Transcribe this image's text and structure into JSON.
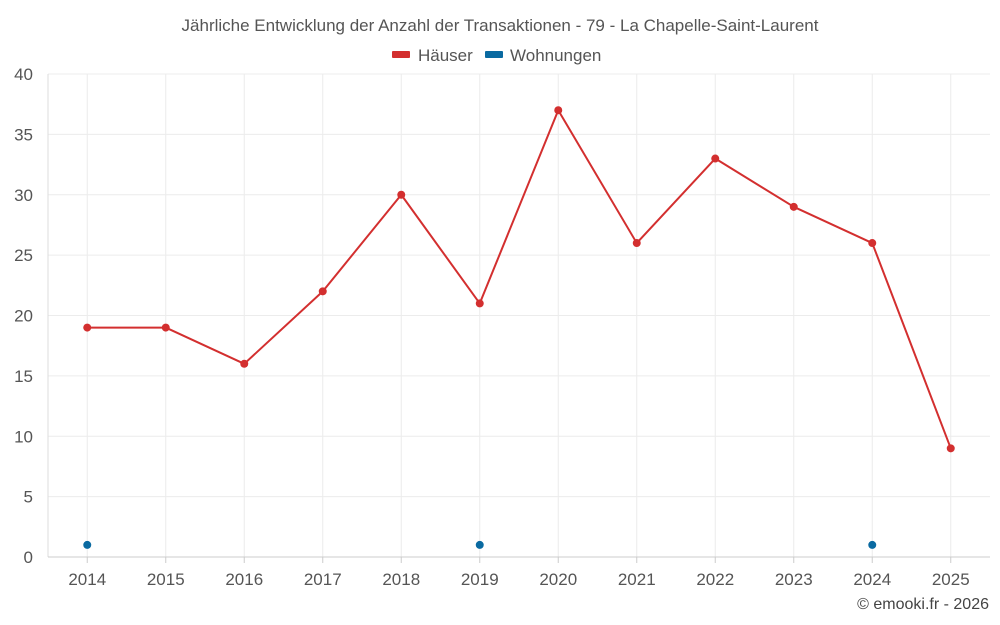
{
  "chart_data": {
    "type": "line",
    "title": "Jährliche Entwicklung der Anzahl der Transaktionen - 79 - La Chapelle-Saint-Laurent",
    "categories": [
      "2014",
      "2015",
      "2016",
      "2017",
      "2018",
      "2019",
      "2020",
      "2021",
      "2022",
      "2023",
      "2024",
      "2025"
    ],
    "series": [
      {
        "name": "Häuser",
        "color": "#d32f2f",
        "values": [
          19,
          19,
          16,
          22,
          30,
          21,
          37,
          26,
          33,
          29,
          26,
          9
        ]
      },
      {
        "name": "Wohnungen",
        "color": "#0a6aa1",
        "values": [
          1,
          null,
          null,
          null,
          null,
          1,
          null,
          null,
          null,
          null,
          1,
          null
        ]
      }
    ],
    "xlabel": "",
    "ylabel": "",
    "ylim": [
      0,
      40
    ],
    "yticks": [
      0,
      5,
      10,
      15,
      20,
      25,
      30,
      35,
      40
    ],
    "grid": true,
    "legend_position": "top-center"
  },
  "credit": "© emooki.fr - 2026"
}
